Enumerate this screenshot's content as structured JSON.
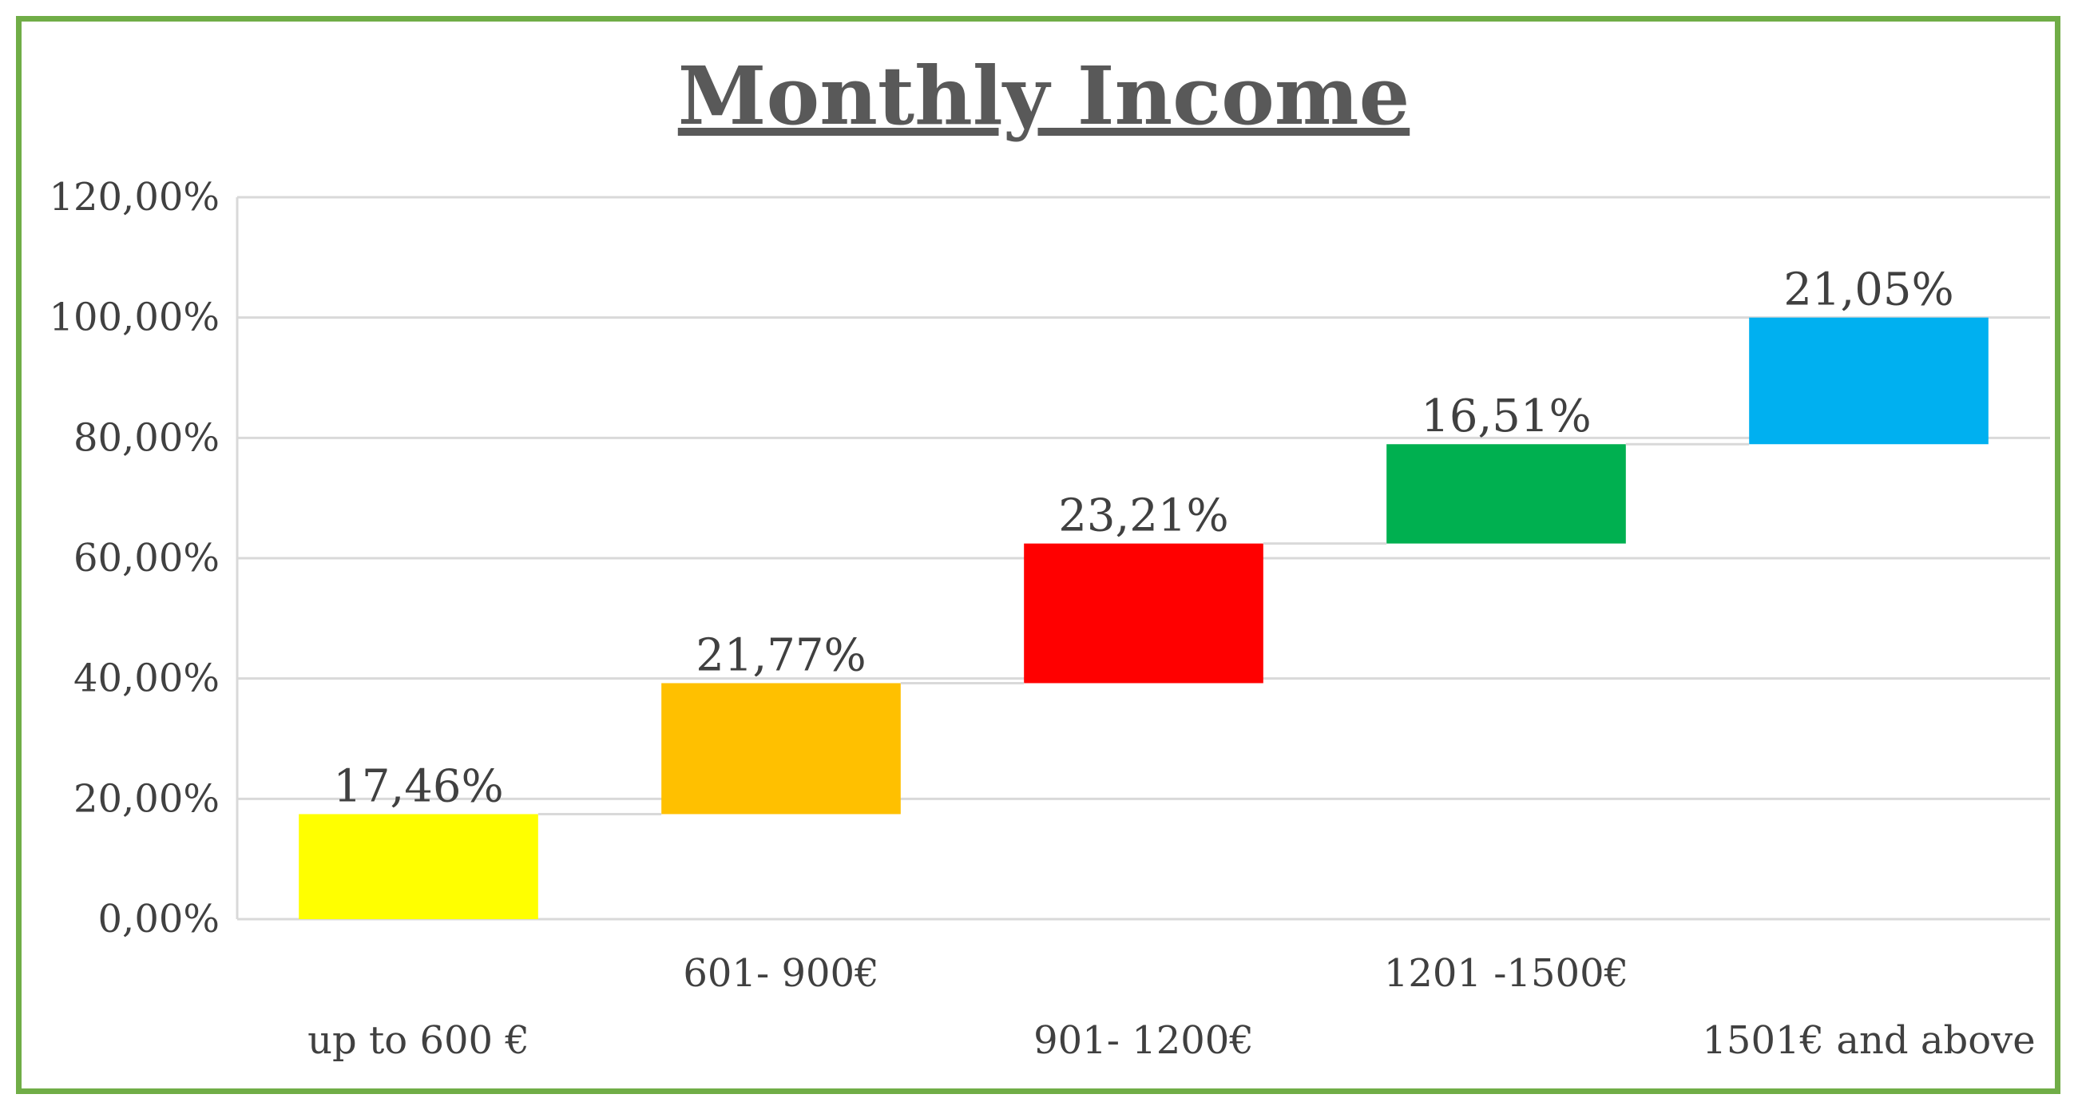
{
  "chart_data": {
    "type": "bar",
    "subtype": "waterfall",
    "title": "Monthly Income",
    "xlabel": "",
    "ylabel": "",
    "ylim": [
      0,
      120
    ],
    "yticks": [
      "0,00%",
      "20,00%",
      "40,00%",
      "60,00%",
      "80,00%",
      "100,00%",
      "120,00%"
    ],
    "grid": true,
    "legend": "none",
    "categories": [
      "up to 600 €",
      "601- 900€",
      "901- 1200€",
      "1201 -1500€",
      "1501€ and above"
    ],
    "values": [
      17.46,
      21.77,
      23.21,
      16.51,
      21.05
    ],
    "data_labels": [
      "17,46%",
      "21,77%",
      "23,21%",
      "16,51%",
      "21,05%"
    ],
    "colors": [
      "#ffff00",
      "#ffc000",
      "#ff0000",
      "#00b050",
      "#00b0f0"
    ],
    "colors_meta": {
      "frame": "#70ad47",
      "grid": "#d9d9d9",
      "text": "#404040"
    }
  }
}
